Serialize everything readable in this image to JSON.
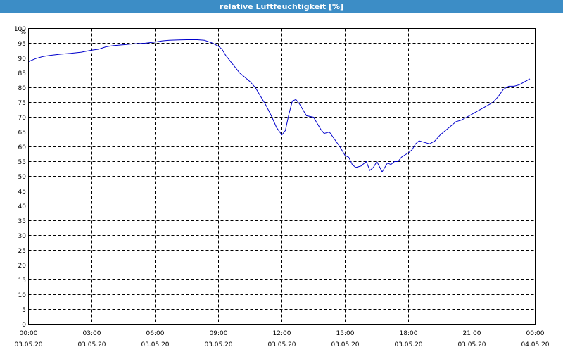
{
  "window": {
    "title": "relative Luftfeuchtigkeit [%]"
  },
  "colors": {
    "titlebar": "#3c8dc6",
    "line": "#0000cc",
    "grid": "#000000"
  },
  "chart_data": {
    "type": "line",
    "title": "relative Luftfeuchtigkeit [%]",
    "y_unit_label": "%",
    "ylim": [
      0,
      100
    ],
    "y_ticks": [
      0,
      5,
      10,
      15,
      20,
      25,
      30,
      35,
      40,
      45,
      50,
      55,
      60,
      65,
      70,
      75,
      80,
      85,
      90,
      95,
      100
    ],
    "xlim": [
      "03.05.20 00:00",
      "04.05.20 00:00"
    ],
    "x_ticks": [
      {
        "time": "00:00",
        "date": "03.05.20"
      },
      {
        "time": "03:00",
        "date": "03.05.20"
      },
      {
        "time": "06:00",
        "date": "03.05.20"
      },
      {
        "time": "09:00",
        "date": "03.05.20"
      },
      {
        "time": "12:00",
        "date": "03.05.20"
      },
      {
        "time": "15:00",
        "date": "03.05.20"
      },
      {
        "time": "18:00",
        "date": "03.05.20"
      },
      {
        "time": "21:00",
        "date": "03.05.20"
      },
      {
        "time": "00:00",
        "date": "04.05.20"
      }
    ],
    "grid": true,
    "grid_style": "dashed",
    "series": [
      {
        "points": [
          [
            "00:00",
            88.8
          ],
          [
            "00:20",
            89.8
          ],
          [
            "00:40",
            90.5
          ],
          [
            "01:00",
            90.9
          ],
          [
            "01:30",
            91.3
          ],
          [
            "02:00",
            91.6
          ],
          [
            "02:30",
            92.0
          ],
          [
            "03:00",
            92.7
          ],
          [
            "03:20",
            93.0
          ],
          [
            "03:40",
            93.8
          ],
          [
            "04:00",
            94.2
          ],
          [
            "04:30",
            94.5
          ],
          [
            "05:00",
            94.8
          ],
          [
            "05:30",
            95.0
          ],
          [
            "06:00",
            95.4
          ],
          [
            "06:20",
            95.8
          ],
          [
            "06:40",
            96.0
          ],
          [
            "07:00",
            96.1
          ],
          [
            "07:30",
            96.2
          ],
          [
            "08:00",
            96.2
          ],
          [
            "08:20",
            96.0
          ],
          [
            "08:40",
            95.2
          ],
          [
            "09:00",
            94.0
          ],
          [
            "09:10",
            93.0
          ],
          [
            "09:20",
            91.0
          ],
          [
            "09:40",
            88.0
          ],
          [
            "10:00",
            85.0
          ],
          [
            "10:15",
            83.5
          ],
          [
            "10:30",
            82.0
          ],
          [
            "10:45",
            80.0
          ],
          [
            "11:00",
            77.0
          ],
          [
            "11:15",
            74.0
          ],
          [
            "11:30",
            70.5
          ],
          [
            "11:45",
            66.5
          ],
          [
            "12:00",
            64.0
          ],
          [
            "12:10",
            65.5
          ],
          [
            "12:20",
            71.0
          ],
          [
            "12:30",
            75.5
          ],
          [
            "12:40",
            76.0
          ],
          [
            "12:50",
            74.5
          ],
          [
            "13:00",
            72.5
          ],
          [
            "13:10",
            70.5
          ],
          [
            "13:30",
            70.0
          ],
          [
            "13:40",
            68.0
          ],
          [
            "13:50",
            66.0
          ],
          [
            "14:00",
            64.5
          ],
          [
            "14:15",
            65.0
          ],
          [
            "14:30",
            62.5
          ],
          [
            "14:45",
            60.0
          ],
          [
            "15:00",
            57.0
          ],
          [
            "15:10",
            56.5
          ],
          [
            "15:20",
            54.0
          ],
          [
            "15:30",
            53.0
          ],
          [
            "15:45",
            53.5
          ],
          [
            "16:00",
            55.0
          ],
          [
            "16:10",
            52.0
          ],
          [
            "16:20",
            53.0
          ],
          [
            "16:30",
            55.0
          ],
          [
            "16:45",
            51.5
          ],
          [
            "17:00",
            54.5
          ],
          [
            "17:10",
            54.0
          ],
          [
            "17:20",
            55.0
          ],
          [
            "17:30",
            55.0
          ],
          [
            "17:40",
            56.5
          ],
          [
            "18:00",
            58.0
          ],
          [
            "18:10",
            59.0
          ],
          [
            "18:20",
            61.0
          ],
          [
            "18:30",
            62.0
          ],
          [
            "18:45",
            61.5
          ],
          [
            "19:00",
            61.0
          ],
          [
            "19:15",
            62.0
          ],
          [
            "19:30",
            64.0
          ],
          [
            "19:45",
            65.5
          ],
          [
            "20:00",
            67.0
          ],
          [
            "20:15",
            68.5
          ],
          [
            "20:30",
            69.0
          ],
          [
            "20:45",
            70.0
          ],
          [
            "21:00",
            71.0
          ],
          [
            "21:15",
            72.0
          ],
          [
            "21:30",
            73.0
          ],
          [
            "21:45",
            74.0
          ],
          [
            "22:00",
            75.0
          ],
          [
            "22:15",
            77.0
          ],
          [
            "22:30",
            79.5
          ],
          [
            "22:45",
            80.5
          ],
          [
            "23:00",
            80.5
          ],
          [
            "23:15",
            81.0
          ],
          [
            "23:30",
            82.0
          ],
          [
            "23:45",
            83.0
          ]
        ]
      }
    ]
  }
}
